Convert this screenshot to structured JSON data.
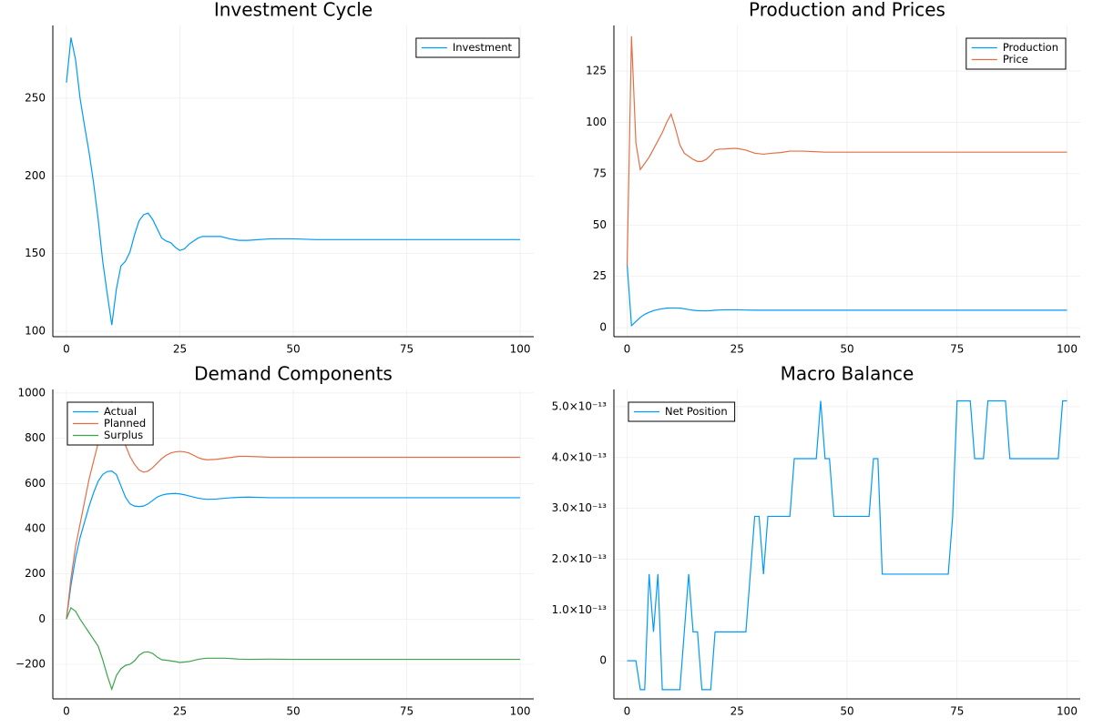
{
  "chart_data": [
    {
      "type": "line",
      "title": "Investment Cycle",
      "x": [
        0,
        1,
        2,
        3,
        4,
        5,
        6,
        7,
        8,
        9,
        10,
        11,
        12,
        13,
        14,
        15,
        16,
        17,
        18,
        19,
        20,
        21,
        22,
        23,
        24,
        25,
        26,
        27,
        28,
        29,
        30,
        32,
        34,
        36,
        38,
        40,
        45,
        50,
        55,
        60,
        70,
        80,
        90,
        100
      ],
      "series": [
        {
          "name": "Investment",
          "color": "#009af9",
          "values": [
            260,
            289,
            275,
            250,
            232,
            215,
            195,
            172,
            145,
            124,
            104,
            127,
            142,
            145,
            151,
            162,
            171,
            175,
            176,
            172,
            166,
            160,
            158,
            157,
            154,
            152,
            153,
            156,
            158,
            160,
            161,
            161,
            161,
            159.5,
            158.5,
            158.5,
            159.5,
            159.5,
            159,
            159,
            159,
            159,
            159,
            159
          ]
        }
      ],
      "xlim": [
        -3,
        103
      ],
      "ylim": [
        96.5,
        296.8
      ],
      "xticks": [
        0,
        25,
        50,
        75,
        100
      ],
      "yticks": [
        100,
        150,
        200,
        250
      ],
      "grid": true,
      "legend": "topright"
    },
    {
      "type": "line",
      "title": "Production and Prices",
      "x": [
        0,
        1,
        2,
        3,
        4,
        5,
        6,
        7,
        8,
        9,
        10,
        11,
        12,
        13,
        14,
        15,
        16,
        17,
        18,
        19,
        20,
        21,
        22,
        23,
        24,
        25,
        27,
        29,
        31,
        33,
        35,
        37,
        40,
        45,
        50,
        60,
        70,
        80,
        90,
        100
      ],
      "series": [
        {
          "name": "Production",
          "color": "#009af9",
          "values": [
            31,
            1,
            3,
            5,
            6.5,
            7.5,
            8.3,
            8.8,
            9.2,
            9.5,
            9.6,
            9.6,
            9.5,
            9.2,
            8.8,
            8.5,
            8.3,
            8.2,
            8.2,
            8.3,
            8.5,
            8.6,
            8.7,
            8.7,
            8.7,
            8.7,
            8.6,
            8.5,
            8.5,
            8.5,
            8.5,
            8.5,
            8.5,
            8.5,
            8.5,
            8.5,
            8.5,
            8.5,
            8.5,
            8.5
          ]
        },
        {
          "name": "Price",
          "color": "#e26f46",
          "values": [
            30,
            142,
            90,
            77,
            80,
            83,
            87,
            91,
            95,
            100,
            104,
            97,
            89,
            85,
            83.5,
            82,
            81,
            81,
            82,
            84,
            86.5,
            87,
            87,
            87.2,
            87.3,
            87.3,
            86.5,
            85,
            84.5,
            85,
            85.3,
            86,
            86,
            85.5,
            85.5,
            85.5,
            85.5,
            85.5,
            85.5,
            85.5
          ]
        }
      ],
      "xlim": [
        -3,
        103
      ],
      "ylim": [
        -4.4,
        147.2
      ],
      "xticks": [
        0,
        25,
        50,
        75,
        100
      ],
      "yticks": [
        0,
        25,
        50,
        75,
        100,
        125
      ],
      "grid": true,
      "legend": "topright"
    },
    {
      "type": "line",
      "title": "Demand Components",
      "x": [
        0,
        1,
        2,
        3,
        4,
        5,
        6,
        7,
        8,
        9,
        10,
        11,
        12,
        13,
        14,
        15,
        16,
        17,
        18,
        19,
        20,
        21,
        22,
        23,
        24,
        25,
        26,
        27,
        28,
        29,
        30,
        31,
        33,
        35,
        38,
        40,
        45,
        50,
        60,
        70,
        80,
        90,
        100
      ],
      "series": [
        {
          "name": "Actual",
          "color": "#009af9",
          "values": [
            0,
            150,
            270,
            360,
            430,
            500,
            560,
            610,
            640,
            653,
            655,
            640,
            590,
            540,
            510,
            500,
            498,
            500,
            510,
            525,
            540,
            548,
            553,
            555,
            556,
            554,
            550,
            545,
            540,
            535,
            532,
            530,
            531,
            535,
            539,
            540,
            537,
            537,
            537,
            537,
            537,
            537,
            537
          ]
        },
        {
          "name": "Planned",
          "color": "#e26f46",
          "values": [
            0,
            180,
            320,
            420,
            520,
            620,
            700,
            780,
            850,
            920,
            960,
            890,
            820,
            770,
            720,
            685,
            660,
            650,
            655,
            670,
            690,
            710,
            725,
            735,
            740,
            742,
            740,
            735,
            725,
            715,
            708,
            705,
            707,
            712,
            720,
            720,
            716,
            716,
            716,
            716,
            716,
            716,
            716
          ]
        },
        {
          "name": "Surplus",
          "color": "#3ea44e",
          "values": [
            0,
            50,
            35,
            0,
            -30,
            -60,
            -90,
            -120,
            -180,
            -250,
            -310,
            -250,
            -220,
            -205,
            -200,
            -185,
            -160,
            -147,
            -145,
            -152,
            -168,
            -180,
            -182,
            -185,
            -188,
            -192,
            -190,
            -188,
            -183,
            -178,
            -175,
            -173,
            -173,
            -173,
            -177,
            -178,
            -177,
            -178,
            -178,
            -178,
            -178,
            -178,
            -178
          ]
        }
      ],
      "xlim": [
        -3,
        103
      ],
      "ylim": [
        -353,
        1016
      ],
      "xticks": [
        0,
        25,
        50,
        75,
        100
      ],
      "yticks": [
        {
          "value": -200,
          "label": "−200"
        },
        0,
        200,
        400,
        600,
        800,
        1000
      ],
      "grid": true,
      "legend": "topleft"
    },
    {
      "type": "line",
      "title": "Macro Balance",
      "x": [
        0,
        1,
        2,
        3,
        4,
        5,
        6,
        7,
        8,
        9,
        10,
        11,
        12,
        13,
        14,
        15,
        16,
        17,
        18,
        19,
        20,
        21,
        22,
        23,
        24,
        25,
        26,
        27,
        28,
        29,
        30,
        31,
        32,
        33,
        34,
        35,
        36,
        37,
        38,
        39,
        40,
        41,
        42,
        43,
        44,
        45,
        46,
        47,
        48,
        49,
        50,
        51,
        52,
        53,
        54,
        55,
        56,
        57,
        58,
        59,
        60,
        61,
        62,
        63,
        64,
        65,
        66,
        67,
        68,
        69,
        70,
        71,
        72,
        73,
        74,
        75,
        76,
        77,
        78,
        79,
        80,
        81,
        82,
        83,
        84,
        85,
        86,
        87,
        88,
        89,
        90,
        91,
        92,
        93,
        94,
        95,
        96,
        97,
        98,
        99,
        100
      ],
      "series": [
        {
          "name": "Net Position",
          "color": "#009af9",
          "values": [
            0,
            0,
            0,
            -5.684e-14,
            -5.684e-14,
            1.705e-13,
            5.684e-14,
            1.705e-13,
            -5.684e-14,
            -5.684e-14,
            -5.684e-14,
            -5.684e-14,
            -5.684e-14,
            5.684e-14,
            1.705e-13,
            5.684e-14,
            5.684e-14,
            -5.684e-14,
            -5.684e-14,
            -5.684e-14,
            5.684e-14,
            5.684e-14,
            5.684e-14,
            5.684e-14,
            5.684e-14,
            5.684e-14,
            5.684e-14,
            5.684e-14,
            1.705e-13,
            2.842e-13,
            2.842e-13,
            1.705e-13,
            2.842e-13,
            2.842e-13,
            2.842e-13,
            2.842e-13,
            2.842e-13,
            2.842e-13,
            3.979e-13,
            3.979e-13,
            3.979e-13,
            3.979e-13,
            3.979e-13,
            3.979e-13,
            5.116e-13,
            3.979e-13,
            3.979e-13,
            2.842e-13,
            2.842e-13,
            2.842e-13,
            2.842e-13,
            2.842e-13,
            2.842e-13,
            2.842e-13,
            2.842e-13,
            2.842e-13,
            3.979e-13,
            3.979e-13,
            1.705e-13,
            1.705e-13,
            1.705e-13,
            1.705e-13,
            1.705e-13,
            1.705e-13,
            1.705e-13,
            1.705e-13,
            1.705e-13,
            1.705e-13,
            1.705e-13,
            1.705e-13,
            1.705e-13,
            1.705e-13,
            1.705e-13,
            1.705e-13,
            2.842e-13,
            5.116e-13,
            5.116e-13,
            5.116e-13,
            5.116e-13,
            3.979e-13,
            3.979e-13,
            3.979e-13,
            5.116e-13,
            5.116e-13,
            5.116e-13,
            5.116e-13,
            5.116e-13,
            3.979e-13,
            3.979e-13,
            3.979e-13,
            3.979e-13,
            3.979e-13,
            3.979e-13,
            3.979e-13,
            3.979e-13,
            3.979e-13,
            3.979e-13,
            3.979e-13,
            3.979e-13,
            5.116e-13,
            5.116e-13
          ]
        }
      ],
      "xlim": [
        -3,
        103
      ],
      "ylim": [
        -7.5e-14,
        5.34e-13
      ],
      "xticks": [
        0,
        25,
        50,
        75,
        100
      ],
      "yticks": [
        0,
        {
          "value": 1e-13,
          "label": "1.0×10⁻¹³"
        },
        {
          "value": 2e-13,
          "label": "2.0×10⁻¹³"
        },
        {
          "value": 3e-13,
          "label": "3.0×10⁻¹³"
        },
        {
          "value": 4e-13,
          "label": "4.0×10⁻¹³"
        },
        {
          "value": 5e-13,
          "label": "5.0×10⁻¹³"
        }
      ],
      "grid": true,
      "legend": "topleft"
    }
  ]
}
